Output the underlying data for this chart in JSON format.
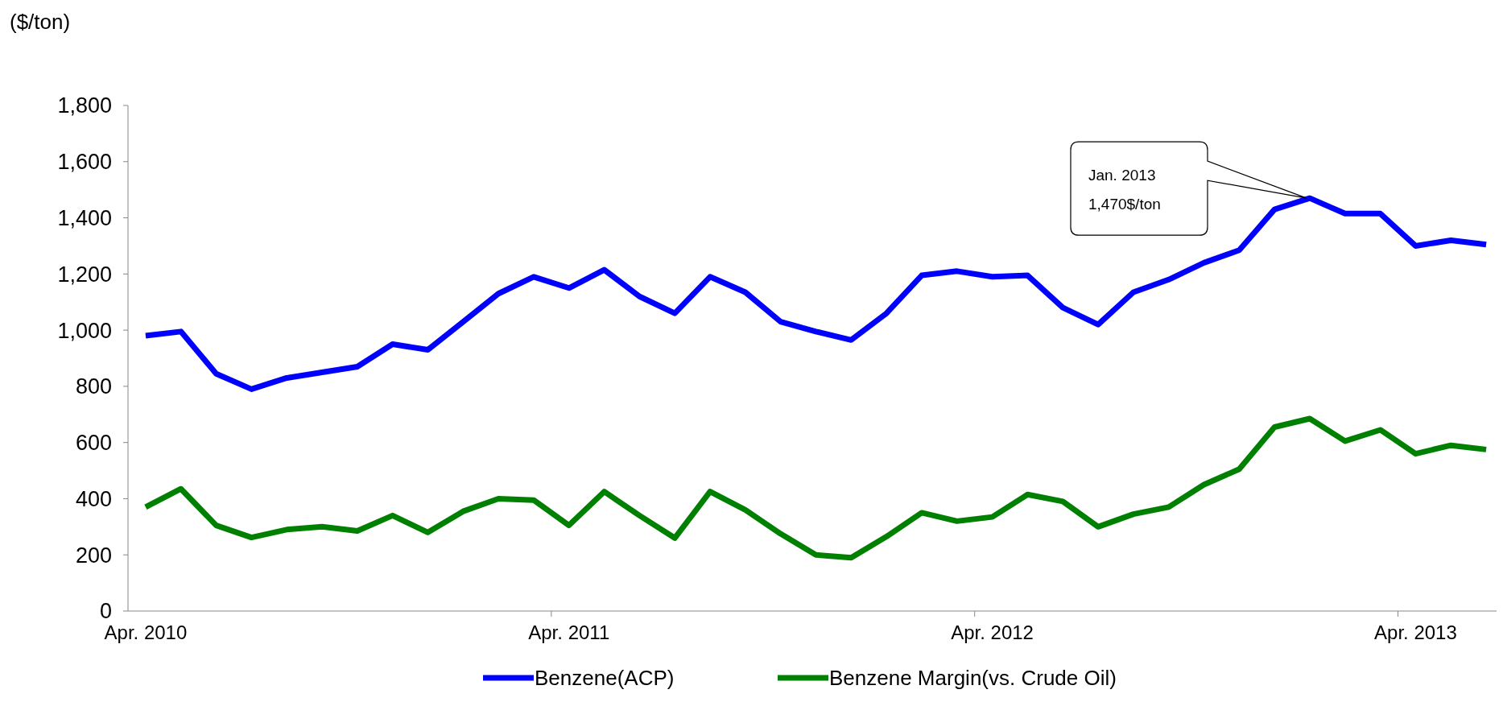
{
  "chart_data": {
    "type": "line",
    "ylabel": "($/ton)",
    "categories": [
      "Apr. 2010",
      null,
      null,
      null,
      null,
      null,
      null,
      null,
      null,
      null,
      null,
      null,
      "Apr. 2011",
      null,
      null,
      null,
      null,
      null,
      null,
      null,
      null,
      null,
      null,
      null,
      "Apr. 2012",
      null,
      null,
      null,
      null,
      null,
      null,
      null,
      null,
      null,
      null,
      null,
      "Apr. 2013",
      null,
      null
    ],
    "series": [
      {
        "name": "Benzene(ACP)",
        "color": "#0000ff",
        "values": [
          980,
          995,
          845,
          790,
          830,
          850,
          870,
          950,
          930,
          1030,
          1130,
          1190,
          1150,
          1215,
          1120,
          1060,
          1190,
          1135,
          1030,
          995,
          965,
          1060,
          1195,
          1210,
          1190,
          1195,
          1080,
          1020,
          1135,
          1180,
          1240,
          1285,
          1430,
          1470,
          1415,
          1415,
          1300,
          1320,
          1305
        ]
      },
      {
        "name": "Benzene Margin(vs. Crude Oil)",
        "color": "#008000",
        "values": [
          370,
          435,
          305,
          262,
          290,
          300,
          285,
          340,
          280,
          355,
          400,
          395,
          305,
          425,
          340,
          260,
          425,
          360,
          275,
          200,
          190,
          265,
          350,
          320,
          335,
          415,
          390,
          300,
          345,
          370,
          450,
          505,
          655,
          685,
          605,
          645,
          560,
          590,
          575
        ]
      }
    ],
    "ylim": [
      0,
      1800
    ],
    "yticks": [
      {
        "value": 0,
        "label": "0"
      },
      {
        "value": 200,
        "label": "200"
      },
      {
        "value": 400,
        "label": "400"
      },
      {
        "value": 600,
        "label": "600"
      },
      {
        "value": 800,
        "label": "800"
      },
      {
        "value": 1000,
        "label": "1,000"
      },
      {
        "value": 1200,
        "label": "1,200"
      },
      {
        "value": 1400,
        "label": "1,400"
      },
      {
        "value": 1600,
        "label": "1,600"
      },
      {
        "value": 1800,
        "label": "1,800"
      }
    ],
    "annotations": [
      "Jan. 2013\n1,470$/ton"
    ],
    "legend": "bottom",
    "grid": false,
    "marker": "none",
    "line_style": "solid"
  }
}
